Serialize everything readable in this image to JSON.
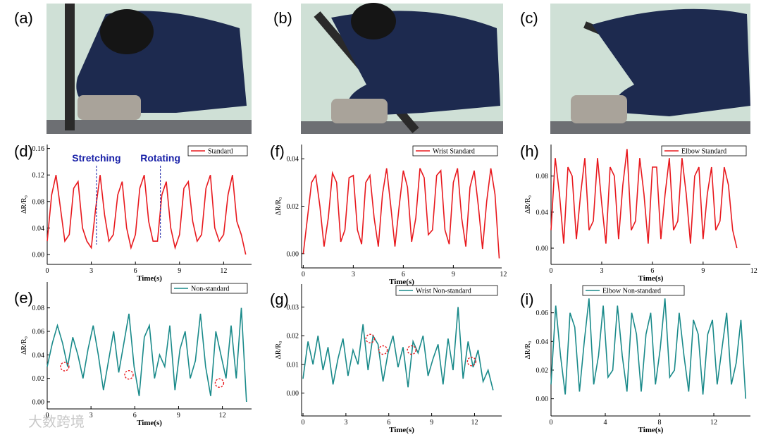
{
  "panels": [
    {
      "label": "(a)"
    },
    {
      "label": "(b)"
    },
    {
      "label": "(c)"
    }
  ],
  "watermark": "大数跨境",
  "chart_data": [
    {
      "type": "line",
      "panel_label": "(d)",
      "xlabel": "Time(s)",
      "ylabel": "ΔR/R₀",
      "legend": "upper right",
      "xlim": [
        0,
        13.9
      ],
      "ylim": [
        -0.015,
        0.166
      ],
      "xticks": [
        0,
        3,
        6,
        9,
        12
      ],
      "yticks": [
        {
          "value": 0,
          "label": "0.00"
        },
        {
          "value": 0.04,
          "label": "0.04"
        },
        {
          "value": 0.08,
          "label": "0.08"
        },
        {
          "value": 0.12,
          "label": "0.12"
        },
        {
          "value": 0.16,
          "label": "0.16"
        }
      ],
      "x": [
        0,
        0.3,
        0.6,
        0.9,
        1.2,
        1.5,
        1.8,
        2.1,
        2.4,
        2.7,
        3,
        3.3,
        3.6,
        3.9,
        4.2,
        4.5,
        4.8,
        5.1,
        5.4,
        5.7,
        6,
        6.3,
        6.6,
        6.9,
        7.2,
        7.5,
        7.8,
        8.1,
        8.4,
        8.7,
        9,
        9.3,
        9.6,
        9.9,
        10.2,
        10.5,
        10.8,
        11.1,
        11.4,
        11.7,
        12,
        12.3,
        12.6,
        12.9,
        13.2,
        13.5
      ],
      "series": [
        {
          "name": "Standard",
          "color": "#e8191e",
          "values": [
            0.02,
            0.09,
            0.12,
            0.07,
            0.02,
            0.03,
            0.1,
            0.11,
            0.04,
            0.02,
            0.01,
            0.07,
            0.12,
            0.06,
            0.02,
            0.03,
            0.09,
            0.11,
            0.04,
            0.01,
            0.03,
            0.1,
            0.12,
            0.05,
            0.02,
            0.02,
            0.09,
            0.11,
            0.04,
            0.01,
            0.03,
            0.1,
            0.11,
            0.05,
            0.02,
            0.03,
            0.1,
            0.12,
            0.04,
            0.02,
            0.03,
            0.09,
            0.12,
            0.05,
            0.03,
            0.0
          ]
        }
      ],
      "annotations": [
        {
          "text": "Stretching",
          "x": 3.35,
          "y": 0.015
        },
        {
          "text": "Rotating",
          "x": 7.7,
          "y": 0.025
        }
      ]
    },
    {
      "type": "line",
      "panel_label": "(f)",
      "xlabel": "Time(s)",
      "ylabel": "ΔR/R₀",
      "legend": "upper right",
      "xlim": [
        -0.1,
        11.9
      ],
      "ylim": [
        -0.006,
        0.046
      ],
      "xticks": [
        0,
        3,
        6,
        9,
        12
      ],
      "yticks": [
        {
          "value": 0,
          "label": "0.00"
        },
        {
          "value": 0.02,
          "label": "0.02"
        },
        {
          "value": 0.04,
          "label": "0.04"
        }
      ],
      "x": [
        0,
        0.25,
        0.5,
        0.75,
        1,
        1.25,
        1.5,
        1.75,
        2,
        2.25,
        2.5,
        2.75,
        3,
        3.25,
        3.5,
        3.75,
        4,
        4.25,
        4.5,
        4.75,
        5,
        5.25,
        5.5,
        5.75,
        6,
        6.25,
        6.5,
        6.75,
        7,
        7.25,
        7.5,
        7.75,
        8,
        8.25,
        8.5,
        8.75,
        9,
        9.25,
        9.5,
        9.75,
        10,
        10.25,
        10.5,
        10.75,
        11,
        11.25,
        11.5,
        11.75
      ],
      "series": [
        {
          "name": "Wrist Standard",
          "color": "#e8191e",
          "values": [
            0.0,
            0.015,
            0.03,
            0.033,
            0.02,
            0.003,
            0.015,
            0.034,
            0.03,
            0.005,
            0.01,
            0.032,
            0.033,
            0.01,
            0.004,
            0.03,
            0.033,
            0.015,
            0.003,
            0.025,
            0.036,
            0.02,
            0.003,
            0.02,
            0.035,
            0.028,
            0.005,
            0.015,
            0.036,
            0.032,
            0.008,
            0.01,
            0.033,
            0.035,
            0.01,
            0.004,
            0.03,
            0.036,
            0.015,
            0.003,
            0.028,
            0.035,
            0.02,
            0.002,
            0.022,
            0.036,
            0.025,
            -0.002
          ]
        }
      ]
    },
    {
      "type": "line",
      "panel_label": "(h)",
      "xlabel": "Time(s)",
      "ylabel": "ΔR/R₀",
      "legend": "upper right",
      "xlim": [
        0,
        11.8
      ],
      "ylim": [
        -0.018,
        0.115
      ],
      "xticks": [
        0,
        3,
        6,
        9,
        12
      ],
      "yticks": [
        {
          "value": 0,
          "label": "0.00"
        },
        {
          "value": 0.04,
          "label": "0.04"
        },
        {
          "value": 0.08,
          "label": "0.08"
        }
      ],
      "x": [
        0,
        0.25,
        0.5,
        0.75,
        1,
        1.25,
        1.5,
        1.75,
        2,
        2.25,
        2.5,
        2.75,
        3,
        3.25,
        3.5,
        3.75,
        4,
        4.25,
        4.5,
        4.75,
        5,
        5.25,
        5.5,
        5.75,
        6,
        6.25,
        6.5,
        6.75,
        7,
        7.25,
        7.5,
        7.75,
        8,
        8.25,
        8.5,
        8.75,
        9,
        9.25,
        9.5,
        9.75,
        10,
        10.25,
        10.5,
        10.75,
        11
      ],
      "series": [
        {
          "name": "Elbow Standard",
          "color": "#e8191e",
          "values": [
            0.02,
            0.1,
            0.06,
            0.005,
            0.09,
            0.08,
            0.01,
            0.06,
            0.1,
            0.02,
            0.03,
            0.1,
            0.05,
            0.005,
            0.09,
            0.08,
            0.01,
            0.07,
            0.11,
            0.02,
            0.03,
            0.1,
            0.06,
            0.005,
            0.09,
            0.09,
            0.01,
            0.06,
            0.1,
            0.02,
            0.03,
            0.1,
            0.06,
            0.005,
            0.08,
            0.09,
            0.01,
            0.06,
            0.09,
            0.02,
            0.03,
            0.09,
            0.07,
            0.02,
            0.0
          ]
        }
      ]
    },
    {
      "type": "line",
      "panel_label": "(e)",
      "xlabel": "Time(s)",
      "ylabel": "ΔR/R₀",
      "legend": "upper right",
      "xlim": [
        0,
        14
      ],
      "ylim": [
        -0.006,
        0.102
      ],
      "xticks": [
        0,
        3,
        6,
        9,
        12
      ],
      "yticks": [
        {
          "value": 0,
          "label": "0.00"
        },
        {
          "value": 0.02,
          "label": "0.02"
        },
        {
          "value": 0.04,
          "label": "0.04"
        },
        {
          "value": 0.06,
          "label": "0.06"
        },
        {
          "value": 0.08,
          "label": "0.08"
        }
      ],
      "x": [
        0,
        0.35,
        0.7,
        1.05,
        1.4,
        1.75,
        2.1,
        2.45,
        2.8,
        3.15,
        3.5,
        3.85,
        4.2,
        4.55,
        4.9,
        5.25,
        5.6,
        5.95,
        6.3,
        6.65,
        7,
        7.35,
        7.7,
        8.05,
        8.4,
        8.75,
        9.1,
        9.45,
        9.8,
        10.15,
        10.5,
        10.85,
        11.2,
        11.55,
        11.9,
        12.25,
        12.6,
        12.95,
        13.3,
        13.65
      ],
      "series": [
        {
          "name": "Non-standard",
          "color": "#1a8a8a",
          "values": [
            0.03,
            0.05,
            0.065,
            0.05,
            0.03,
            0.055,
            0.04,
            0.02,
            0.045,
            0.065,
            0.04,
            0.01,
            0.035,
            0.06,
            0.025,
            0.05,
            0.075,
            0.03,
            0.005,
            0.055,
            0.065,
            0.02,
            0.04,
            0.03,
            0.065,
            0.01,
            0.045,
            0.06,
            0.02,
            0.035,
            0.075,
            0.03,
            0.005,
            0.06,
            0.04,
            0.02,
            0.065,
            0.02,
            0.08,
            0.0
          ]
        }
      ],
      "highlights": [
        {
          "x": 1.2,
          "y": 0.03
        },
        {
          "x": 5.6,
          "y": 0.023
        },
        {
          "x": 11.8,
          "y": 0.016
        }
      ]
    },
    {
      "type": "line",
      "panel_label": "(g)",
      "xlabel": "Time(s)",
      "ylabel": "ΔR/R₀",
      "legend": "upper right",
      "xlim": [
        -0.1,
        13.9
      ],
      "ylim": [
        -0.008,
        0.038
      ],
      "xticks": [
        0,
        3,
        6,
        9,
        12
      ],
      "yticks": [
        {
          "value": 0,
          "label": "0.00"
        },
        {
          "value": 0.01,
          "label": "0.01"
        },
        {
          "value": 0.02,
          "label": "0.02"
        },
        {
          "value": 0.03,
          "label": "0.03"
        }
      ],
      "x": [
        0,
        0.35,
        0.7,
        1.05,
        1.4,
        1.75,
        2.1,
        2.45,
        2.8,
        3.15,
        3.5,
        3.85,
        4.2,
        4.55,
        4.9,
        5.25,
        5.6,
        5.95,
        6.3,
        6.65,
        7,
        7.35,
        7.7,
        8.05,
        8.4,
        8.75,
        9.1,
        9.45,
        9.8,
        10.15,
        10.5,
        10.85,
        11.2,
        11.55,
        11.9,
        12.25,
        12.6,
        12.95,
        13.3
      ],
      "series": [
        {
          "name": "Wrist Non-standard",
          "color": "#1a8a8a",
          "values": [
            0.005,
            0.018,
            0.01,
            0.02,
            0.008,
            0.016,
            0.003,
            0.012,
            0.019,
            0.006,
            0.015,
            0.01,
            0.024,
            0.008,
            0.02,
            0.017,
            0.004,
            0.014,
            0.02,
            0.009,
            0.016,
            0.002,
            0.018,
            0.014,
            0.02,
            0.006,
            0.012,
            0.017,
            0.003,
            0.019,
            0.008,
            0.03,
            0.005,
            0.018,
            0.009,
            0.015,
            0.004,
            0.008,
            0.001
          ]
        }
      ],
      "highlights": [
        {
          "x": 4.7,
          "y": 0.019
        },
        {
          "x": 5.6,
          "y": 0.015
        },
        {
          "x": 7.6,
          "y": 0.015
        },
        {
          "x": 11.8,
          "y": 0.011
        }
      ]
    },
    {
      "type": "line",
      "panel_label": "(i)",
      "xlabel": "Time(s)",
      "ylabel": "ΔR/R₀",
      "legend": "upper left",
      "xlim": [
        0,
        14.7
      ],
      "ylim": [
        -0.012,
        0.08
      ],
      "xticks": [
        0,
        4,
        8,
        12
      ],
      "yticks": [
        {
          "value": 0,
          "label": "0.00"
        },
        {
          "value": 0.02,
          "label": "0.02"
        },
        {
          "value": 0.04,
          "label": "0.04"
        },
        {
          "value": 0.06,
          "label": "0.06"
        }
      ],
      "x": [
        0,
        0.35,
        0.7,
        1.05,
        1.4,
        1.75,
        2.1,
        2.45,
        2.8,
        3.15,
        3.5,
        3.85,
        4.2,
        4.55,
        4.9,
        5.25,
        5.6,
        5.95,
        6.3,
        6.65,
        7,
        7.35,
        7.7,
        8.05,
        8.4,
        8.75,
        9.1,
        9.45,
        9.8,
        10.15,
        10.5,
        10.85,
        11.2,
        11.55,
        11.9,
        12.25,
        12.6,
        12.95,
        13.3,
        13.65,
        14,
        14.35
      ],
      "series": [
        {
          "name": "Elbow Non-standard",
          "color": "#1a8a8a",
          "values": [
            0.01,
            0.065,
            0.03,
            0.003,
            0.06,
            0.05,
            0.005,
            0.04,
            0.07,
            0.01,
            0.03,
            0.065,
            0.015,
            0.02,
            0.065,
            0.03,
            0.005,
            0.06,
            0.045,
            0.005,
            0.045,
            0.06,
            0.01,
            0.035,
            0.07,
            0.015,
            0.02,
            0.06,
            0.03,
            0.005,
            0.055,
            0.045,
            0.003,
            0.045,
            0.055,
            0.01,
            0.035,
            0.06,
            0.01,
            0.025,
            0.055,
            0.0
          ]
        }
      ]
    }
  ]
}
